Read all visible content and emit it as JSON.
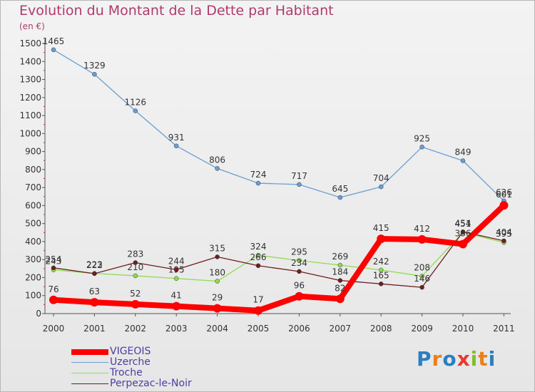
{
  "title": "Evolution du Montant de la Dette par Habitant",
  "subtitle": "(en €)",
  "brand": {
    "letters": [
      "P",
      "r",
      "o",
      "x",
      "i",
      "t",
      "i"
    ],
    "colors": [
      "#2a7fc0",
      "#e8801c",
      "#2a7fc0",
      "#e63b2e",
      "#7fbf2a",
      "#e8801c",
      "#2a7fc0"
    ]
  },
  "chart_data": {
    "type": "line",
    "title": "Evolution du Montant de la Dette par Habitant",
    "subtitle": "(en €)",
    "xlabel": "",
    "ylabel": "",
    "ylim": [
      0,
      1500
    ],
    "yticks": [
      0,
      100,
      200,
      300,
      400,
      500,
      600,
      700,
      800,
      900,
      1000,
      1100,
      1200,
      1300,
      1400,
      1500
    ],
    "x": [
      "2000",
      "2001",
      "2002",
      "2003",
      "2004",
      "2005",
      "2006",
      "2007",
      "2008",
      "2009",
      "2010",
      "2011"
    ],
    "grid": false,
    "legend_position": "bottom-left",
    "series": [
      {
        "name": "VIGEOIS",
        "color": "#ff0000",
        "values": [
          76,
          63,
          52,
          41,
          29,
          17,
          96,
          82,
          415,
          412,
          386,
          601
        ]
      },
      {
        "name": "Uzerche",
        "color": "#6a9fd4",
        "values": [
          1465,
          1329,
          1126,
          931,
          806,
          724,
          717,
          645,
          704,
          925,
          849,
          626
        ]
      },
      {
        "name": "Troche",
        "color": "#90dc50",
        "values": [
          243,
          223,
          210,
          195,
          180,
          324,
          295,
          269,
          242,
          208,
          451,
          395
        ]
      },
      {
        "name": "Perpezac-le-Noir",
        "color": "#6b2020",
        "values": [
          254,
          222,
          283,
          244,
          315,
          266,
          234,
          184,
          165,
          146,
          454,
          404
        ]
      }
    ]
  }
}
